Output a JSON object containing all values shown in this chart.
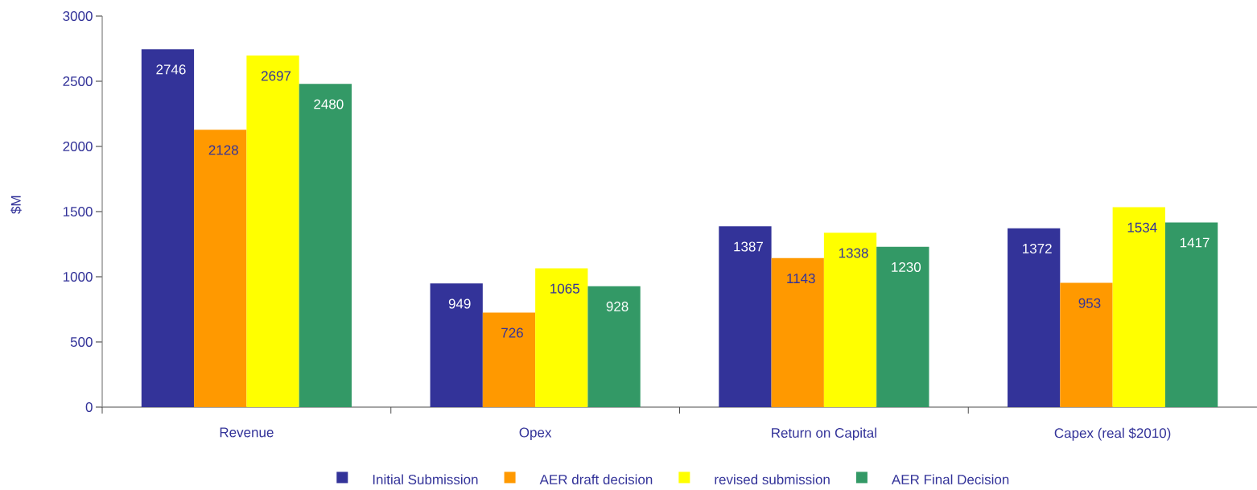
{
  "chart_data": {
    "type": "bar",
    "ylabel": "$M",
    "categories": [
      "Revenue",
      "Opex",
      "Return on Capital",
      "Capex (real $2010)"
    ],
    "series": [
      {
        "name": "Initial Submission",
        "color": "#333399",
        "values": [
          2746,
          949,
          1387,
          1372
        ]
      },
      {
        "name": "AER draft decision",
        "color": "#ff9900",
        "values": [
          2128,
          726,
          1143,
          953
        ]
      },
      {
        "name": "revised submission",
        "color": "#ffff00",
        "values": [
          2697,
          1065,
          1338,
          1534
        ]
      },
      {
        "name": "AER Final Decision",
        "color": "#339966",
        "values": [
          2480,
          928,
          1230,
          1417
        ]
      }
    ],
    "ylim": [
      0,
      3000
    ],
    "yticks": [
      0,
      500,
      1000,
      1500,
      2000,
      2500,
      3000
    ],
    "grid": false,
    "legend": "bottom",
    "data_labels": true
  }
}
